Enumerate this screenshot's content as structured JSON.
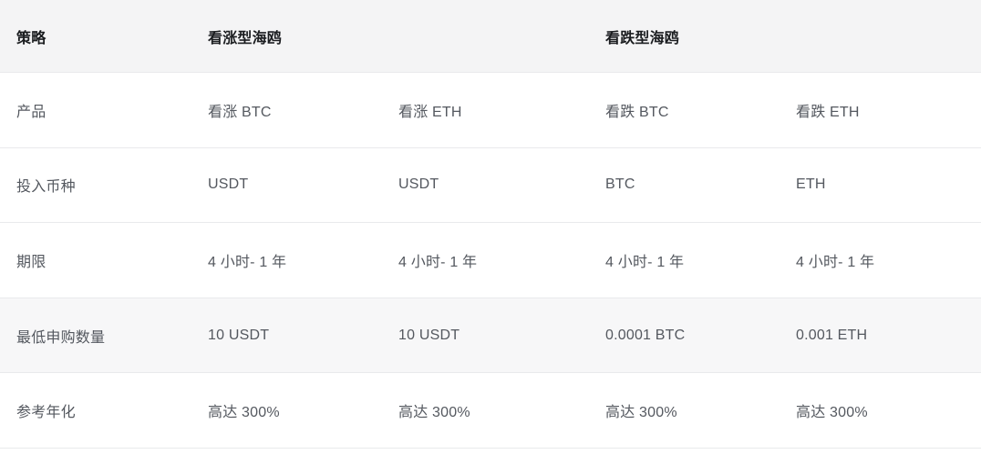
{
  "table": {
    "header": {
      "strategy_label": "策略",
      "bullish_label": "看涨型海鸥",
      "bearish_label": "看跌型海鸥"
    },
    "rows": [
      {
        "label": "产品",
        "values": [
          "看涨 BTC",
          "看涨 ETH",
          "看跌 BTC",
          "看跌 ETH"
        ]
      },
      {
        "label": "投入币种",
        "values": [
          "USDT",
          "USDT",
          "BTC",
          "ETH"
        ]
      },
      {
        "label": "期限",
        "values": [
          "4 小时- 1 年",
          "4 小时- 1 年",
          "4 小时- 1 年",
          "4 小时- 1 年"
        ]
      },
      {
        "label": "最低申购数量",
        "values": [
          "10 USDT",
          "10 USDT",
          "0.0001 BTC",
          "0.001 ETH"
        ]
      },
      {
        "label": "参考年化",
        "values": [
          "高达 300%",
          "高达 300%",
          "高达 300%",
          "高达 300%"
        ]
      }
    ],
    "colors": {
      "header_bg": "#f4f4f5",
      "highlight_row_bg": "#f7f7f8",
      "divider": "#e9eaec",
      "header_text": "#1a1c1f",
      "body_text": "#54585f"
    }
  }
}
